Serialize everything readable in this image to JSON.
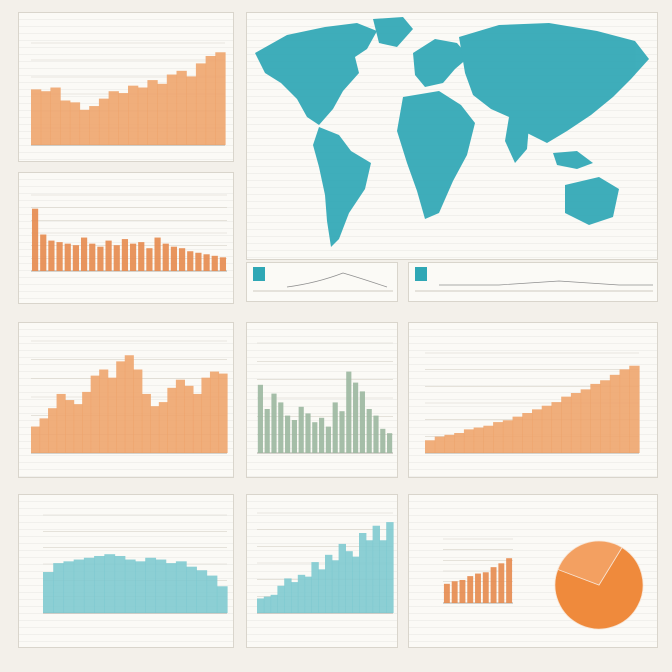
{
  "colors": {
    "orange": "#e58a4e",
    "orange_fill": "#eea36a",
    "teal": "#2fa7b5",
    "teal_fill": "#7cc8cf",
    "sage": "#9bb7a0",
    "map_land": "#2fa7b5",
    "pie": "#ef8a3c",
    "grid": "#d8d3c9",
    "axis": "#9a958c"
  },
  "map_panel": {
    "title": "",
    "mini_left_color": "#2fa7b5",
    "mini_right_color": "#2fa7b5"
  },
  "chart_data": [
    {
      "id": "c1",
      "type": "area",
      "title": "",
      "series": [
        {
          "values": [
            60,
            58,
            62,
            48,
            46,
            38,
            42,
            50,
            58,
            56,
            64,
            62,
            70,
            66,
            76,
            80,
            74,
            88,
            96,
            100
          ]
        }
      ],
      "ylim": [
        0,
        110
      ]
    },
    {
      "id": "c2",
      "type": "bar",
      "title": "",
      "series": [
        {
          "values": [
            82,
            48,
            40,
            38,
            36,
            34,
            44,
            36,
            32,
            40,
            34,
            42,
            36,
            38,
            30,
            44,
            36,
            32,
            30,
            26,
            24,
            22,
            20,
            18
          ]
        }
      ],
      "ylim": [
        0,
        100
      ]
    },
    {
      "id": "c3",
      "type": "area",
      "title": "",
      "series": [
        {
          "values": [
            26,
            34,
            44,
            58,
            52,
            48,
            60,
            76,
            82,
            74,
            90,
            96,
            82,
            58,
            46,
            50,
            64,
            72,
            66,
            58,
            74,
            80,
            78
          ]
        }
      ],
      "ylim": [
        0,
        110
      ]
    },
    {
      "id": "c4",
      "type": "bar",
      "title": "",
      "series": [
        {
          "values": [
            62,
            40,
            54,
            46,
            34,
            30,
            42,
            36,
            28,
            32,
            24,
            46,
            38,
            74,
            64,
            56,
            40,
            34,
            22,
            18
          ]
        }
      ],
      "ylim": [
        0,
        100
      ]
    },
    {
      "id": "c5",
      "type": "area",
      "title": "",
      "series": [
        {
          "values": [
            14,
            18,
            20,
            22,
            26,
            28,
            30,
            34,
            36,
            40,
            44,
            48,
            52,
            56,
            62,
            66,
            70,
            76,
            80,
            86,
            92,
            96
          ]
        }
      ],
      "ylim": [
        0,
        110
      ]
    },
    {
      "id": "c6",
      "type": "area",
      "title": "",
      "series": [
        {
          "values": [
            46,
            56,
            58,
            60,
            62,
            64,
            66,
            64,
            60,
            58,
            62,
            60,
            56,
            58,
            52,
            48,
            42,
            30
          ]
        }
      ],
      "ylim": [
        0,
        110
      ]
    },
    {
      "id": "c7",
      "type": "area",
      "title": "",
      "series": [
        {
          "values": [
            16,
            18,
            20,
            30,
            38,
            34,
            42,
            40,
            56,
            48,
            64,
            58,
            76,
            68,
            62,
            88,
            80,
            96,
            80,
            100
          ]
        }
      ],
      "ylim": [
        0,
        110
      ]
    },
    {
      "id": "c8",
      "type": "bar",
      "title": "",
      "series": [
        {
          "values": [
            30,
            34,
            36,
            42,
            46,
            48,
            56,
            62,
            70
          ]
        }
      ],
      "ylim": [
        0,
        100
      ]
    },
    {
      "id": "c9",
      "type": "pie",
      "title": "",
      "series": [
        {
          "values": [
            72,
            28
          ]
        }
      ]
    }
  ]
}
